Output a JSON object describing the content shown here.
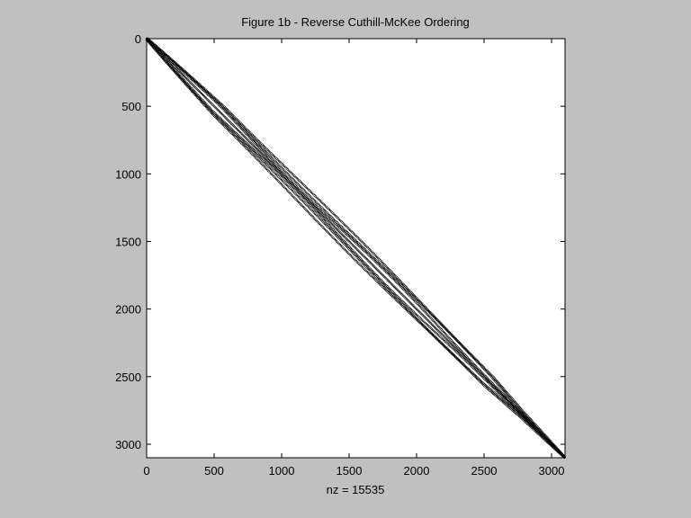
{
  "chart_data": {
    "type": "scatter",
    "title": "Figure 1b - Reverse Cuthill-McKee Ordering",
    "xlabel": "nz = 15535",
    "ylabel": "",
    "matrix_size": 3100,
    "nonzeros": 15535,
    "xlim": [
      0,
      3100
    ],
    "ylim": [
      0,
      3100
    ],
    "y_reversed": true,
    "xticks": [
      0,
      500,
      1000,
      1500,
      2000,
      2500,
      3000
    ],
    "yticks": [
      0,
      500,
      1000,
      1500,
      2000,
      2500,
      3000
    ],
    "band_half_width": [
      {
        "row": 0,
        "offset": 10
      },
      {
        "row": 500,
        "offset": 90
      },
      {
        "row": 1000,
        "offset": 95
      },
      {
        "row": 1500,
        "offset": 95
      },
      {
        "row": 2000,
        "offset": 90
      },
      {
        "row": 2500,
        "offset": 85
      },
      {
        "row": 2750,
        "offset": 40
      },
      {
        "row": 3100,
        "offset": 5
      }
    ],
    "grid": false,
    "colors": {
      "background": "#c0c0c0",
      "axes": "#ffffff",
      "marker": "#000000"
    }
  }
}
